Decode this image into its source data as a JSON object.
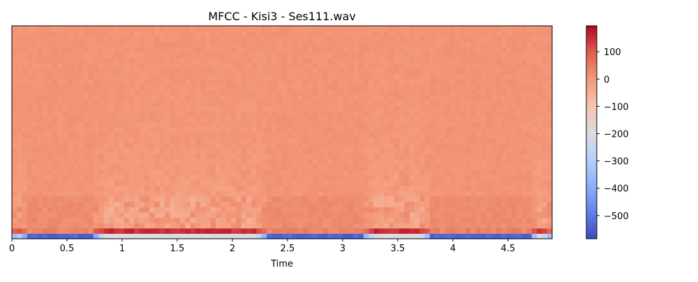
{
  "chart_data": {
    "type": "heatmap",
    "title": "MFCC - Kisi3 - Ses111.wav",
    "xlabel": "Time",
    "ylabel": "",
    "xlim": [
      0,
      4.9
    ],
    "n_coefficients": 40,
    "n_frames": 106,
    "x_ticks": [
      0,
      0.5,
      1,
      1.5,
      2,
      2.5,
      3,
      3.5,
      4,
      4.5
    ],
    "x_tick_labels": [
      "0",
      "0.5",
      "1",
      "1.5",
      "2",
      "2.5",
      "3",
      "3.5",
      "4",
      "4.5"
    ],
    "colorbar": {
      "colormap": "coolwarm",
      "vmin": -585,
      "vmax": 195,
      "ticks": [
        100,
        0,
        -100,
        -200,
        -300,
        -400,
        -500
      ],
      "tick_labels": [
        "100",
        "0",
        "−100",
        "−200",
        "−300",
        "−400",
        "−500"
      ]
    },
    "speech_segments": [
      {
        "start": 0.0,
        "end": 0.12
      },
      {
        "start": 0.75,
        "end": 2.3
      },
      {
        "start": 3.2,
        "end": 3.8
      },
      {
        "start": 4.7,
        "end": 4.9
      }
    ],
    "approx_levels": {
      "coef0_silence": -540,
      "coef0_speech": -200,
      "coef1_speech": 150,
      "higher_coefs": 10
    }
  }
}
